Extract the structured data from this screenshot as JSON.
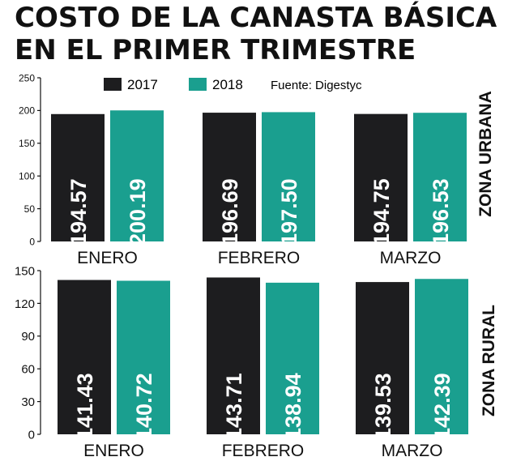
{
  "title": {
    "line1": "COSTO DE LA CANASTA BÁSICA",
    "line2": "EN EL PRIMER TRIMESTRE"
  },
  "legend": {
    "series_2017": "2017",
    "series_2018": "2018",
    "source": "Fuente: Digestyc"
  },
  "colors": {
    "series_2017": "#1d1d1f",
    "series_2018": "#1a9f8f",
    "text": "#111111"
  },
  "chart_data": [
    {
      "type": "bar",
      "panel_label": "ZONA URBANA",
      "categories": [
        "ENERO",
        "FEBRERO",
        "MARZO"
      ],
      "series": [
        {
          "name": "2017",
          "values": [
            194.57,
            196.69,
            194.75
          ],
          "labels": [
            "$194.57",
            "$196.69",
            "$194.75"
          ]
        },
        {
          "name": "2018",
          "values": [
            200.19,
            197.5,
            196.53
          ],
          "labels": [
            "$200.19",
            "$197.50",
            "$196.53"
          ]
        }
      ],
      "ylim": [
        0,
        250
      ],
      "yticks": [
        "0",
        "50",
        "100",
        "150",
        "200",
        "250"
      ],
      "ytick_values": [
        0,
        50,
        100,
        150,
        200,
        250
      ]
    },
    {
      "type": "bar",
      "panel_label": "ZONA RURAL",
      "categories": [
        "ENERO",
        "FEBRERO",
        "MARZO"
      ],
      "series": [
        {
          "name": "2017",
          "values": [
            141.43,
            143.71,
            139.53
          ],
          "labels": [
            "$141.43",
            "$143.71",
            "$139.53"
          ]
        },
        {
          "name": "2018",
          "values": [
            140.72,
            138.94,
            142.39
          ],
          "labels": [
            "$140.72",
            "$138.94",
            "$142.39"
          ]
        }
      ],
      "ylim": [
        0,
        150
      ],
      "yticks": [
        "0",
        "30",
        "60",
        "90",
        "120",
        "150"
      ],
      "ytick_values": [
        0,
        30,
        60,
        90,
        120,
        150
      ]
    }
  ]
}
